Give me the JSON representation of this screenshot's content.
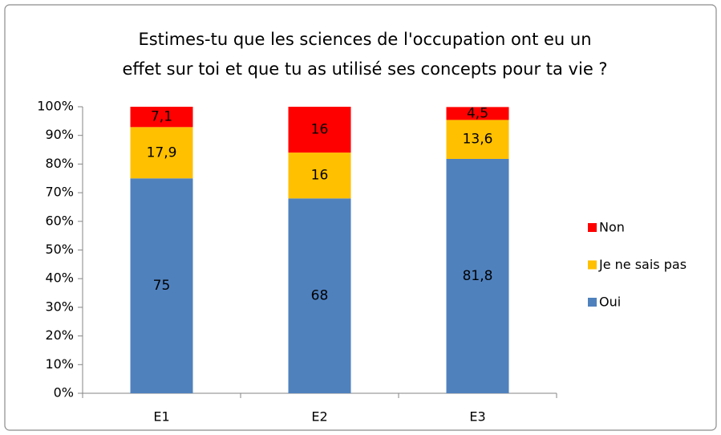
{
  "chart_data": {
    "type": "stacked_bar",
    "title": [
      "Estimes-tu que les sciences de l'occupation ont eu un",
      "effet sur toi et que tu as utilisé ses concepts pour ta vie ?"
    ],
    "categories": [
      "E1",
      "E2",
      "E3"
    ],
    "series": [
      {
        "name": "Oui",
        "color": "#4f81bd",
        "values": [
          75,
          68,
          81.8
        ],
        "value_labels": [
          "75",
          "68",
          "81,8"
        ]
      },
      {
        "name": "Je ne sais pas",
        "color": "#ffc000",
        "values": [
          17.9,
          16,
          13.6
        ],
        "value_labels": [
          "17,9",
          "16",
          "13,6"
        ]
      },
      {
        "name": "Non",
        "color": "#ff0000",
        "values": [
          7.1,
          16,
          4.5
        ],
        "value_labels": [
          "7,1",
          "16",
          "4,5"
        ]
      }
    ],
    "ylim": [
      0,
      100
    ],
    "yticks": [
      {
        "value": 0,
        "label": "0%"
      },
      {
        "value": 10,
        "label": "10%"
      },
      {
        "value": 20,
        "label": "20%"
      },
      {
        "value": 30,
        "label": "30%"
      },
      {
        "value": 40,
        "label": "40%"
      },
      {
        "value": 50,
        "label": "50%"
      },
      {
        "value": 60,
        "label": "60%"
      },
      {
        "value": 70,
        "label": "70%"
      },
      {
        "value": 80,
        "label": "80%"
      },
      {
        "value": 90,
        "label": "90%"
      },
      {
        "value": 100,
        "label": "100%"
      }
    ],
    "grid": false,
    "legend": "right"
  }
}
